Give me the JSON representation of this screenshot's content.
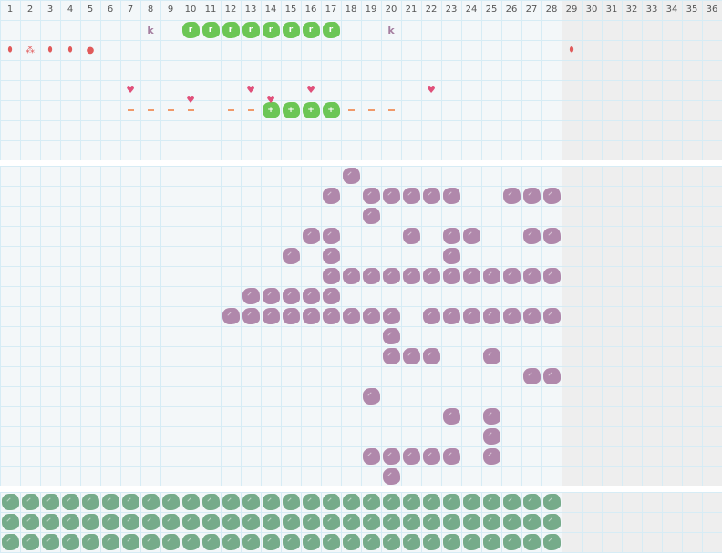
{
  "columns": [
    "1",
    "2",
    "3",
    "4",
    "5",
    "6",
    "7",
    "8",
    "9",
    "10",
    "11",
    "12",
    "13",
    "14",
    "15",
    "16",
    "17",
    "18",
    "19",
    "20",
    "21",
    "22",
    "23",
    "24",
    "25",
    "26",
    "27",
    "28",
    "29",
    "30",
    "31",
    "32",
    "33",
    "34",
    "35",
    "36"
  ],
  "active_columns": 28,
  "colors": {
    "purple": "#b088ab",
    "sage": "#76ab8a",
    "green": "#6cc655",
    "drop": "#e05a5a",
    "heart": "#e0507a",
    "dash": "#f0996a",
    "grid": "#d6ecf5"
  },
  "top_section": {
    "k_label": "k",
    "k_notes": [
      [
        0,
        8
      ],
      [
        0,
        20
      ]
    ],
    "green_notes_r": {
      "mark": "r",
      "cells": [
        [
          0,
          10
        ],
        [
          0,
          11
        ],
        [
          0,
          12
        ],
        [
          0,
          13
        ],
        [
          0,
          14
        ],
        [
          0,
          15
        ],
        [
          0,
          16
        ],
        [
          0,
          17
        ]
      ]
    },
    "green_notes_plus": {
      "mark": "+",
      "cells": [
        [
          4,
          14
        ],
        [
          4,
          15
        ],
        [
          4,
          16
        ],
        [
          4,
          17
        ]
      ]
    },
    "drops": [
      {
        "row": 1,
        "col": 1,
        "icon": "drop-icon",
        "glyph": "⬮"
      },
      {
        "row": 1,
        "col": 2,
        "icon": "triple-drop-icon",
        "glyph": "⁂"
      },
      {
        "row": 1,
        "col": 3,
        "icon": "drop-icon",
        "glyph": "⬮"
      },
      {
        "row": 1,
        "col": 4,
        "icon": "drop-icon",
        "glyph": "⬮"
      },
      {
        "row": 1,
        "col": 5,
        "icon": "circle-icon",
        "glyph": "●"
      },
      {
        "row": 1,
        "col": 29,
        "icon": "drop-icon",
        "glyph": "⬮"
      }
    ],
    "hearts": [
      {
        "col": 7,
        "low": false
      },
      {
        "col": 10,
        "low": true
      },
      {
        "col": 13,
        "low": false
      },
      {
        "col": 14,
        "low": true
      },
      {
        "col": 16,
        "low": false
      },
      {
        "col": 22,
        "low": false
      }
    ],
    "dashes": [
      7,
      8,
      9,
      10,
      12,
      13,
      18,
      19,
      20
    ]
  },
  "middle_section": {
    "rows": [
      [
        18
      ],
      [
        17,
        19,
        20,
        21,
        22,
        23,
        26,
        27,
        28
      ],
      [
        19
      ],
      [
        16,
        17,
        21,
        23,
        24,
        27,
        28
      ],
      [
        15,
        17,
        23
      ],
      [
        17,
        18,
        19,
        20,
        21,
        22,
        23,
        24,
        25,
        26,
        27,
        28
      ],
      [
        13,
        14,
        15,
        16,
        17
      ],
      [
        12,
        13,
        14,
        15,
        16,
        17,
        18,
        19,
        20,
        22,
        23,
        24,
        25,
        26,
        27,
        28
      ],
      [
        20
      ],
      [
        20,
        21,
        22,
        25
      ],
      [
        27,
        28
      ],
      [
        19
      ],
      [
        23,
        25
      ],
      [
        25
      ],
      [
        19,
        20,
        21,
        22,
        23,
        25
      ],
      [
        20
      ]
    ]
  },
  "bottom_section": {
    "rows": 3,
    "from_col": 1,
    "to_col": 28
  }
}
